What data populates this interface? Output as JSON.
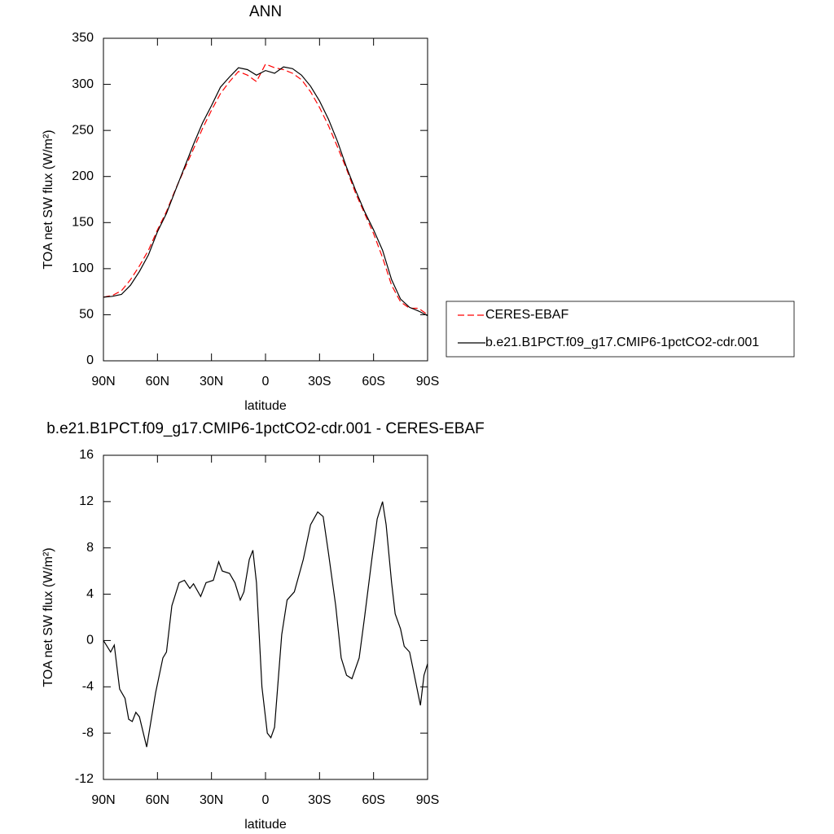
{
  "chart_data": [
    {
      "type": "line",
      "title": "ANN",
      "y_label": "TOA net SW flux (W/m²)",
      "x_label": "latitude",
      "x": [
        90,
        85,
        80,
        75,
        70,
        65,
        60,
        55,
        50,
        45,
        40,
        35,
        30,
        25,
        20,
        15,
        10,
        5,
        0,
        -5,
        -10,
        -15,
        -20,
        -25,
        -30,
        -35,
        -40,
        -45,
        -50,
        -55,
        -60,
        -65,
        -70,
        -75,
        -80,
        -85,
        -90
      ],
      "series": [
        {
          "name": "CERES-EBAF",
          "color": "#ff0000",
          "dash": true,
          "values": [
            69,
            71,
            76,
            88,
            103,
            120,
            142,
            162,
            186,
            208,
            230,
            252,
            272,
            290,
            303,
            314,
            310,
            303,
            322,
            318,
            316,
            312,
            305,
            292,
            275,
            255,
            232,
            208,
            182,
            160,
            138,
            112,
            82,
            64,
            57,
            57,
            50
          ]
        },
        {
          "name": "b.e21.B1PCT.f09_g17.CMIP6-1pctCO2-cdr.001",
          "color": "#000000",
          "dash": false,
          "values": [
            69,
            70,
            72,
            82,
            97,
            115,
            140,
            160,
            185,
            210,
            235,
            258,
            277,
            297,
            308,
            318,
            316,
            310,
            315,
            312,
            319,
            317,
            310,
            298,
            282,
            262,
            238,
            210,
            185,
            162,
            142,
            120,
            88,
            67,
            58,
            54,
            49
          ]
        }
      ],
      "xlim": [
        90,
        -90
      ],
      "xticks": [
        {
          "value": 90,
          "label": "90N"
        },
        {
          "value": 60,
          "label": "60N"
        },
        {
          "value": 30,
          "label": "30N"
        },
        0,
        {
          "value": -30,
          "label": "30S"
        },
        {
          "value": -60,
          "label": "60S"
        },
        {
          "value": -90,
          "label": "90S"
        }
      ],
      "ylim": [
        0,
        350
      ],
      "yticks": [
        0,
        50,
        100,
        150,
        200,
        250,
        300,
        350
      ],
      "legend": "right"
    },
    {
      "type": "line",
      "title": "b.e21.B1PCT.f09_g17.CMIP6-1pctCO2-cdr.001 - CERES-EBAF",
      "y_label": "TOA net SW flux (W/m²)",
      "x_label": "latitude",
      "x": [
        90,
        86,
        84,
        81,
        78,
        76,
        74,
        72,
        70,
        66,
        61,
        57,
        55,
        52,
        48,
        45,
        42,
        40,
        36,
        33,
        29,
        26,
        24,
        20,
        17,
        14,
        12,
        9,
        7,
        5,
        2,
        -1,
        -3,
        -5,
        -9,
        -12,
        -16,
        -21,
        -25,
        -29,
        -32,
        -35,
        -39,
        -42,
        -45,
        -48,
        -52,
        -55,
        -59,
        -62,
        -65,
        -67,
        -70,
        -72,
        -75,
        -77,
        -80,
        -82,
        -86,
        -88,
        -90
      ],
      "color": "#000000",
      "values": [
        0,
        -1,
        -0.4,
        -4.2,
        -5,
        -6.8,
        -7,
        -6.2,
        -6.6,
        -9.2,
        -4.5,
        -1.5,
        -1,
        3,
        5,
        5.2,
        4.5,
        4.9,
        3.8,
        5,
        5.2,
        6.8,
        6,
        5.8,
        5,
        3.5,
        4.2,
        7,
        7.8,
        5,
        -4,
        -8,
        -8.4,
        -7.5,
        0.5,
        3.5,
        4.2,
        7,
        10,
        11.1,
        10.7,
        7.5,
        3,
        -1.5,
        -3,
        -3.3,
        -1.5,
        2,
        7,
        10.5,
        12,
        10,
        5,
        2.3,
        1,
        -0.5,
        -1,
        -2.5,
        -5.6,
        -3,
        -2
      ],
      "xlim": [
        90,
        -90
      ],
      "xticks": [
        {
          "value": 90,
          "label": "90N"
        },
        {
          "value": 60,
          "label": "60N"
        },
        {
          "value": 30,
          "label": "30N"
        },
        0,
        {
          "value": -30,
          "label": "30S"
        },
        {
          "value": -60,
          "label": "60S"
        },
        {
          "value": -90,
          "label": "90S"
        }
      ],
      "ylim": [
        -12,
        16
      ],
      "yticks": [
        -12,
        -8,
        -4,
        0,
        4,
        8,
        12,
        16
      ]
    }
  ]
}
